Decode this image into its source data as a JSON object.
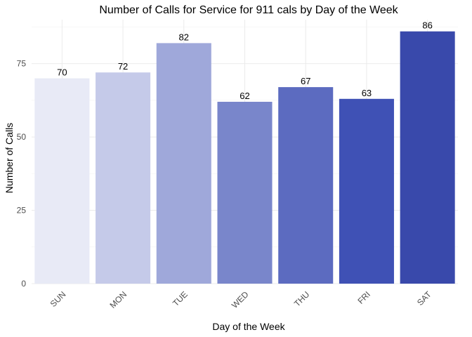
{
  "chart_data": {
    "type": "bar",
    "title": "Number of Calls for Service for 911 cals by Day of the Week",
    "xlabel": "Day of the Week",
    "ylabel": "Number of Calls",
    "categories": [
      "SUN",
      "MON",
      "TUE",
      "WED",
      "THU",
      "FRI",
      "SAT"
    ],
    "values": [
      70,
      72,
      82,
      62,
      67,
      63,
      86
    ],
    "colors": [
      "#e8eaf6",
      "#c5cae9",
      "#9fa8da",
      "#7986cb",
      "#5c6bc0",
      "#3f51b5",
      "#3949ab"
    ],
    "ylim": [
      0,
      90
    ],
    "yticks": [
      0,
      25,
      50,
      75
    ],
    "grid": true,
    "legend": "none"
  }
}
